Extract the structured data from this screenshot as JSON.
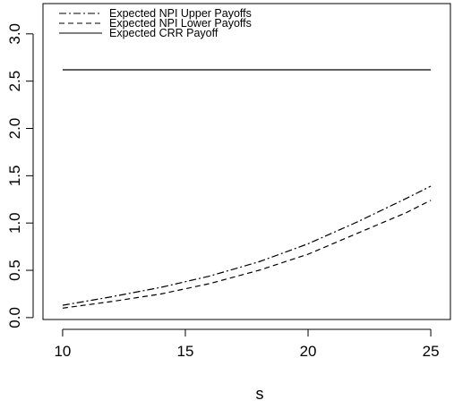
{
  "chart_data": {
    "type": "line",
    "title": "",
    "xlabel": "s",
    "ylabel": "",
    "xlim": [
      9.2,
      25.8
    ],
    "ylim": [
      -0.02,
      3.32
    ],
    "x_ticks": [
      10,
      15,
      20,
      25
    ],
    "x_tick_labels": [
      "10",
      "15",
      "20",
      "25"
    ],
    "y_ticks": [
      0.0,
      0.5,
      1.0,
      1.5,
      2.0,
      2.5,
      3.0
    ],
    "y_tick_labels": [
      "0.0",
      "0.5",
      "1.0",
      "1.5",
      "2.0",
      "2.5",
      "3.0"
    ],
    "grid": false,
    "legend": {
      "position": "top-left",
      "entries": [
        {
          "label": "Expected NPI Upper Payoffs",
          "line_style": "dashdot"
        },
        {
          "label": "Expected NPI Lower Payoffs",
          "line_style": "dashed"
        },
        {
          "label": "Expected CRR Payoff",
          "line_style": "solid"
        }
      ]
    },
    "series": [
      {
        "name": "Expected NPI Upper Payoffs",
        "line_style": "dashdot",
        "color": "#000000",
        "x": [
          10,
          12,
          14,
          16,
          18,
          20,
          22,
          24,
          25
        ],
        "y": [
          0.13,
          0.22,
          0.32,
          0.44,
          0.59,
          0.78,
          1.01,
          1.26,
          1.39
        ]
      },
      {
        "name": "Expected NPI Lower Payoffs",
        "line_style": "dashed",
        "color": "#000000",
        "x": [
          10,
          12,
          14,
          16,
          18,
          20,
          22,
          24,
          25
        ],
        "y": [
          0.1,
          0.17,
          0.25,
          0.36,
          0.5,
          0.67,
          0.89,
          1.11,
          1.24
        ]
      },
      {
        "name": "Expected CRR Payoff",
        "line_style": "solid",
        "color": "#000000",
        "x": [
          10,
          25
        ],
        "y": [
          2.62,
          2.62
        ]
      }
    ]
  }
}
